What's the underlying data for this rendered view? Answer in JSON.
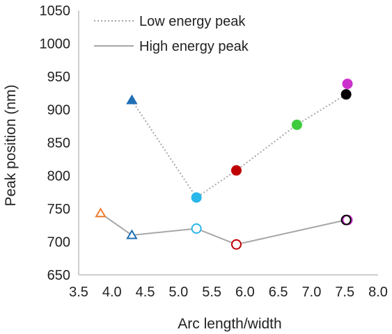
{
  "chart_data": {
    "type": "scatter",
    "title": "",
    "xlabel": "Arc length/width",
    "ylabel": "Peak position (nm)",
    "xlim": [
      3.5,
      8.0
    ],
    "ylim": [
      650,
      1050
    ],
    "xticks": [
      "3.5",
      "4.0",
      "4.5",
      "5.0",
      "5.5",
      "6.0",
      "6.5",
      "7.0",
      "7.5",
      "8.0"
    ],
    "yticks": [
      "650",
      "700",
      "750",
      "800",
      "850",
      "900",
      "950",
      "1000",
      "1050"
    ],
    "grid": false,
    "legend_position": "top",
    "series": [
      {
        "name": "Low energy peak",
        "line_style": "dotted",
        "line_color": "#a6a6a6",
        "line_points": [
          {
            "x": 4.3,
            "y": 914
          },
          {
            "x": 5.27,
            "y": 767
          },
          {
            "x": 5.87,
            "y": 808
          },
          {
            "x": 6.78,
            "y": 877
          },
          {
            "x": 7.52,
            "y": 923
          }
        ],
        "markers": [
          {
            "x": 4.3,
            "y": 914,
            "shape": "triangle",
            "fill": "#1f6fb5",
            "stroke": "#1f6fb5"
          },
          {
            "x": 5.27,
            "y": 767,
            "shape": "circle",
            "fill": "#2ab7ea",
            "stroke": "#2ab7ea"
          },
          {
            "x": 5.87,
            "y": 808,
            "shape": "circle",
            "fill": "#c00000",
            "stroke": "#c00000"
          },
          {
            "x": 6.78,
            "y": 877,
            "shape": "circle",
            "fill": "#3ecb3e",
            "stroke": "#3ecb3e"
          },
          {
            "x": 7.54,
            "y": 939,
            "shape": "circle",
            "fill": "#cc33cc",
            "stroke": "#cc33cc"
          },
          {
            "x": 7.52,
            "y": 923,
            "shape": "circle",
            "fill": "#000000",
            "stroke": "#000000"
          }
        ]
      },
      {
        "name": "High energy peak",
        "line_style": "solid",
        "line_color": "#a6a6a6",
        "line_points": [
          {
            "x": 3.83,
            "y": 743
          },
          {
            "x": 4.3,
            "y": 710
          },
          {
            "x": 5.27,
            "y": 720
          },
          {
            "x": 5.87,
            "y": 696
          },
          {
            "x": 7.52,
            "y": 733
          }
        ],
        "markers": [
          {
            "x": 3.83,
            "y": 743,
            "shape": "triangle",
            "fill": "#ffffff",
            "stroke": "#ed7d31"
          },
          {
            "x": 4.3,
            "y": 710,
            "shape": "triangle",
            "fill": "#ffffff",
            "stroke": "#1f6fb5"
          },
          {
            "x": 5.27,
            "y": 720,
            "shape": "circle",
            "fill": "#ffffff",
            "stroke": "#2ab7ea"
          },
          {
            "x": 5.87,
            "y": 696,
            "shape": "circle",
            "fill": "#ffffff",
            "stroke": "#c00000"
          },
          {
            "x": 7.54,
            "y": 733,
            "shape": "circle",
            "fill": "#ffffff",
            "stroke": "#cc33cc"
          },
          {
            "x": 7.52,
            "y": 733,
            "shape": "circle",
            "fill": "none",
            "stroke": "#000000"
          }
        ]
      }
    ]
  }
}
